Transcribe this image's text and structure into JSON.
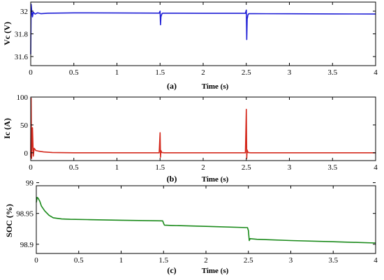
{
  "chart_data": [
    {
      "type": "line",
      "panel_label": "(a)",
      "xlabel": "Time (s)",
      "ylabel": "Vc (V)",
      "xlim": [
        0,
        4
      ],
      "ylim": [
        31.52,
        32.08
      ],
      "xticks": [
        0,
        0.5,
        1,
        1.5,
        2,
        2.5,
        3,
        3.5,
        4
      ],
      "xtick_labels": [
        "0",
        "0.5",
        "1",
        "1.5",
        "2",
        "2.5",
        "3",
        "3.5",
        "4"
      ],
      "yticks": [
        31.6,
        31.8,
        32
      ],
      "ytick_labels": [
        "31.6",
        "31.8",
        "32"
      ],
      "color": "#1f1fd6",
      "series": [
        {
          "x": [
            0,
            0.005,
            0.01,
            0.02,
            0.03,
            0.05,
            0.08,
            0.12,
            0.2,
            0.5,
            1.0,
            1.49,
            1.5,
            1.505,
            1.51,
            1.52,
            1.53,
            1.6,
            2.0,
            2.49,
            2.5,
            2.505,
            2.51,
            2.52,
            2.53,
            2.6,
            3.0,
            3.5,
            4.0
          ],
          "y": [
            31.62,
            32.06,
            32.02,
            31.95,
            31.99,
            31.975,
            31.985,
            31.978,
            31.982,
            31.985,
            31.984,
            31.983,
            32.0,
            31.88,
            31.95,
            31.975,
            31.982,
            31.982,
            31.981,
            31.981,
            32.01,
            31.75,
            31.93,
            31.97,
            31.978,
            31.978,
            31.977,
            31.976,
            31.975
          ]
        }
      ]
    },
    {
      "type": "line",
      "panel_label": "(b)",
      "xlabel": "Time (s)",
      "ylabel": "Ic (A)",
      "xlim": [
        0,
        4
      ],
      "ylim": [
        -14,
        100
      ],
      "xticks": [
        0,
        0.5,
        1,
        1.5,
        2,
        2.5,
        3,
        3.5,
        4
      ],
      "xtick_labels": [
        "0",
        "0.5",
        "1",
        "1.5",
        "2",
        "2.5",
        "3",
        "3.5",
        "4"
      ],
      "yticks": [
        0,
        50,
        100
      ],
      "ytick_labels": [
        "0",
        "50",
        "100"
      ],
      "color": "#d42a1e",
      "series": [
        {
          "x": [
            0,
            0.005,
            0.01,
            0.02,
            0.03,
            0.04,
            0.06,
            0.09,
            0.15,
            0.25,
            0.5,
            1.0,
            1.49,
            1.5,
            1.505,
            1.51,
            1.52,
            1.55,
            2.0,
            2.49,
            2.5,
            2.505,
            2.51,
            2.52,
            2.55,
            3.0,
            3.5,
            4.0
          ],
          "y": [
            -8,
            98,
            -10,
            45,
            -6,
            8,
            4,
            3,
            1.5,
            0.5,
            0,
            0,
            0,
            36,
            -8,
            4,
            0.5,
            0,
            0,
            0,
            78,
            -10,
            5,
            0.5,
            0,
            0,
            0,
            0
          ]
        }
      ]
    },
    {
      "type": "line",
      "panel_label": "(c)",
      "xlabel": "Time (s)",
      "ylabel": "SOC (%)",
      "xlim": [
        0,
        4
      ],
      "ylim": [
        98.885,
        98.995
      ],
      "xticks": [
        0,
        0.5,
        1,
        1.5,
        2,
        2.5,
        3,
        3.5,
        4
      ],
      "xtick_labels": [
        "0",
        "0.5",
        "1",
        "1.5",
        "2",
        "2.5",
        "3",
        "3.5",
        "4"
      ],
      "yticks": [
        98.9,
        98.95,
        99
      ],
      "ytick_labels": [
        "98.9",
        "98.95",
        "99"
      ],
      "color": "#1a8a1a",
      "series": [
        {
          "x": [
            0,
            0.01,
            0.02,
            0.04,
            0.06,
            0.1,
            0.15,
            0.2,
            0.3,
            0.4,
            0.6,
            1.0,
            1.49,
            1.5,
            1.51,
            1.6,
            2.0,
            2.49,
            2.5,
            2.51,
            2.52,
            2.6,
            3.0,
            3.5,
            4.0
          ],
          "y": [
            98.968,
            98.976,
            98.975,
            98.97,
            98.962,
            98.954,
            98.947,
            98.943,
            98.941,
            98.9405,
            98.94,
            98.939,
            98.938,
            98.934,
            98.931,
            98.9305,
            98.929,
            98.927,
            98.922,
            98.906,
            98.909,
            98.908,
            98.906,
            98.904,
            98.902
          ]
        }
      ]
    }
  ]
}
